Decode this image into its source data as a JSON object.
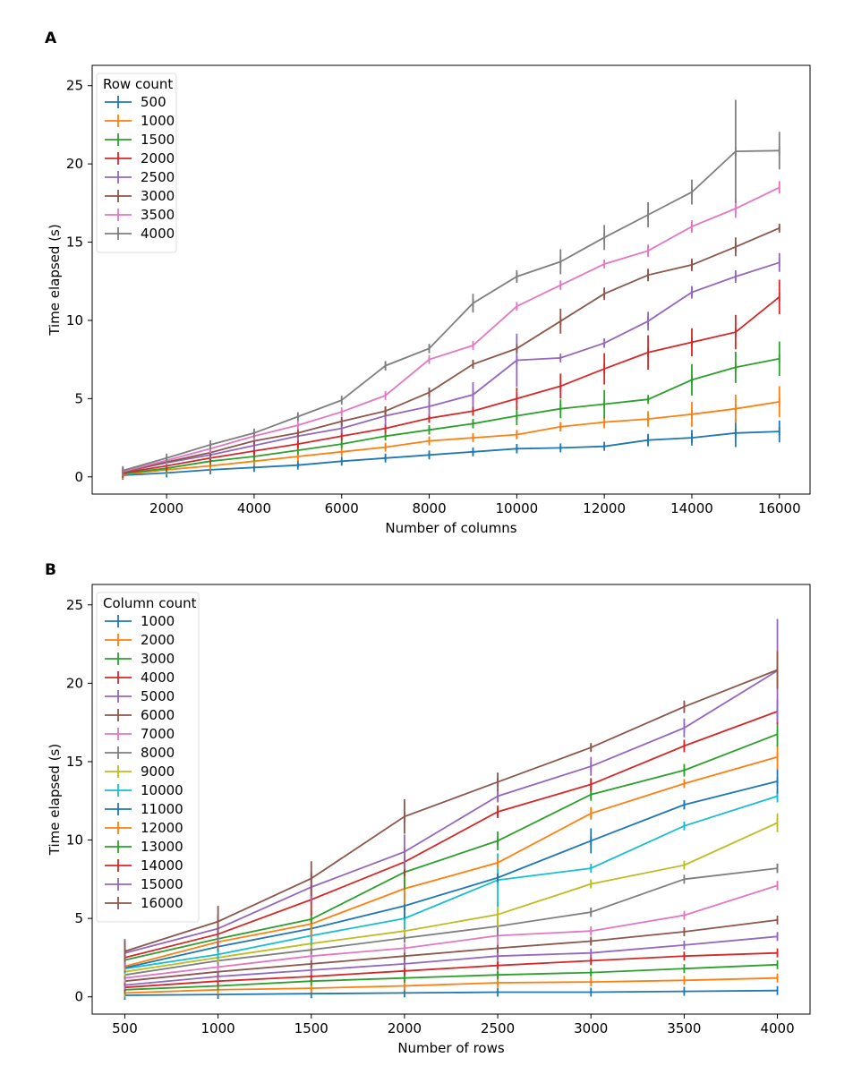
{
  "colors": [
    "#1f77b4",
    "#ff7f0e",
    "#2ca02c",
    "#d62728",
    "#9467bd",
    "#8c564b",
    "#e377c2",
    "#7f7f7f",
    "#bcbd22",
    "#17becf"
  ],
  "chart_data": [
    {
      "panel_label": "A",
      "type": "line",
      "error_bars": true,
      "xlabel": "Number of columns",
      "ylabel": "Time elapsed (s)",
      "xlim": [
        300,
        16700
      ],
      "ylim": [
        -1.1,
        26.3
      ],
      "xticks": [
        2000,
        4000,
        6000,
        8000,
        10000,
        12000,
        14000,
        16000
      ],
      "yticks": [
        0,
        5,
        10,
        15,
        20,
        25
      ],
      "legend_title": "Row count",
      "legend_placement": "top-left",
      "grid": false,
      "x": [
        1000,
        2000,
        3000,
        4000,
        5000,
        6000,
        7000,
        8000,
        9000,
        10000,
        11000,
        12000,
        13000,
        14000,
        15000,
        16000
      ],
      "series": [
        {
          "name": "500",
          "values": [
            0.1,
            0.25,
            0.45,
            0.6,
            0.75,
            1.0,
            1.2,
            1.4,
            1.6,
            1.8,
            1.85,
            1.95,
            2.35,
            2.5,
            2.8,
            2.9
          ],
          "errors": [
            0.05,
            0.05,
            0.05,
            0.05,
            0.1,
            0.1,
            0.2,
            0.2,
            0.2,
            0.3,
            0.1,
            0.1,
            0.4,
            0.5,
            0.9,
            0.7
          ]
        },
        {
          "name": "1000",
          "values": [
            0.15,
            0.45,
            0.7,
            1.0,
            1.3,
            1.6,
            1.9,
            2.3,
            2.5,
            2.7,
            3.2,
            3.5,
            3.7,
            4.0,
            4.35,
            4.8
          ],
          "errors": [
            0.05,
            0.1,
            0.1,
            0.1,
            0.1,
            0.1,
            0.2,
            0.2,
            0.2,
            0.3,
            0.3,
            0.4,
            0.5,
            0.8,
            0.9,
            1.0
          ]
        },
        {
          "name": "1500",
          "values": [
            0.2,
            0.55,
            1.0,
            1.3,
            1.7,
            2.1,
            2.6,
            3.0,
            3.4,
            3.9,
            4.35,
            4.65,
            4.95,
            6.2,
            7.0,
            7.55
          ],
          "errors": [
            0.05,
            0.1,
            0.1,
            0.1,
            0.1,
            0.2,
            0.2,
            0.3,
            0.3,
            0.6,
            0.6,
            0.9,
            0.1,
            1.0,
            1.0,
            1.1
          ]
        },
        {
          "name": "2000",
          "values": [
            0.25,
            0.7,
            1.2,
            1.65,
            2.1,
            2.6,
            3.1,
            3.75,
            4.2,
            5.0,
            5.8,
            6.9,
            7.95,
            8.6,
            9.25,
            11.5
          ],
          "errors": [
            0.05,
            0.1,
            0.2,
            0.2,
            0.2,
            0.2,
            0.3,
            0.3,
            0.3,
            0.7,
            0.8,
            1.0,
            1.1,
            0.9,
            1.1,
            1.1
          ]
        },
        {
          "name": "2500",
          "values": [
            0.3,
            0.9,
            1.4,
            2.0,
            2.6,
            3.1,
            3.9,
            4.5,
            5.25,
            7.45,
            7.6,
            8.55,
            9.95,
            11.8,
            12.8,
            13.7
          ],
          "errors": [
            0.05,
            0.1,
            0.2,
            0.2,
            0.3,
            0.3,
            0.6,
            0.6,
            0.8,
            1.7,
            0.1,
            0.3,
            0.6,
            0.4,
            0.4,
            0.6
          ]
        },
        {
          "name": "3000",
          "values": [
            0.3,
            0.95,
            1.55,
            2.3,
            2.8,
            3.55,
            4.2,
            5.4,
            7.2,
            8.2,
            9.95,
            11.7,
            12.9,
            13.55,
            14.7,
            15.9
          ],
          "errors": [
            0.05,
            0.1,
            0.2,
            0.2,
            0.2,
            0.2,
            0.3,
            0.3,
            0.2,
            0.1,
            0.8,
            0.4,
            0.4,
            0.4,
            0.6,
            0.2
          ]
        },
        {
          "name": "3500",
          "values": [
            0.35,
            1.05,
            1.8,
            2.6,
            3.3,
            4.15,
            5.2,
            7.5,
            8.4,
            10.9,
            12.25,
            13.6,
            14.45,
            16.0,
            17.15,
            18.5
          ],
          "errors": [
            0.05,
            0.1,
            0.1,
            0.1,
            0.1,
            0.1,
            0.2,
            0.1,
            0.1,
            0.2,
            0.3,
            0.2,
            0.4,
            0.4,
            0.6,
            0.4
          ]
        },
        {
          "name": "4000",
          "values": [
            0.4,
            1.2,
            2.05,
            2.8,
            3.85,
            4.9,
            7.1,
            8.2,
            11.1,
            12.8,
            13.75,
            15.3,
            16.75,
            18.2,
            20.8,
            20.85
          ],
          "errors": [
            0.05,
            0.1,
            0.1,
            0.1,
            0.2,
            0.1,
            0.3,
            0.3,
            0.6,
            0.4,
            0.8,
            0.8,
            0.8,
            0.8,
            3.3,
            1.2
          ]
        }
      ]
    },
    {
      "panel_label": "B",
      "type": "line",
      "error_bars": true,
      "xlabel": "Number of rows",
      "ylabel": "Time elapsed (s)",
      "xlim": [
        325,
        4175
      ],
      "ylim": [
        -1.1,
        26.3
      ],
      "xticks": [
        500,
        1000,
        1500,
        2000,
        2500,
        3000,
        3500,
        4000
      ],
      "yticks": [
        0,
        5,
        10,
        15,
        20,
        25
      ],
      "legend_title": "Column count",
      "legend_placement": "top-left",
      "grid": false,
      "x": [
        500,
        1000,
        1500,
        2000,
        2500,
        3000,
        3500,
        4000
      ],
      "series": [
        {
          "name": "1000",
          "values": [
            0.1,
            0.15,
            0.2,
            0.25,
            0.3,
            0.3,
            0.35,
            0.4
          ]
        },
        {
          "name": "2000",
          "values": [
            0.25,
            0.45,
            0.55,
            0.7,
            0.9,
            0.95,
            1.05,
            1.2
          ]
        },
        {
          "name": "3000",
          "values": [
            0.45,
            0.7,
            1.0,
            1.2,
            1.4,
            1.55,
            1.8,
            2.05
          ]
        },
        {
          "name": "4000",
          "values": [
            0.6,
            1.0,
            1.3,
            1.65,
            2.0,
            2.3,
            2.6,
            2.8
          ]
        },
        {
          "name": "5000",
          "values": [
            0.75,
            1.3,
            1.7,
            2.1,
            2.6,
            2.8,
            3.3,
            3.85
          ]
        },
        {
          "name": "6000",
          "values": [
            1.0,
            1.6,
            2.1,
            2.6,
            3.1,
            3.55,
            4.15,
            4.9
          ]
        },
        {
          "name": "7000",
          "values": [
            1.2,
            1.9,
            2.6,
            3.1,
            3.9,
            4.2,
            5.2,
            7.1
          ]
        },
        {
          "name": "8000",
          "values": [
            1.4,
            2.3,
            3.0,
            3.75,
            4.5,
            5.4,
            7.5,
            8.2
          ]
        },
        {
          "name": "9000",
          "values": [
            1.6,
            2.5,
            3.4,
            4.2,
            5.25,
            7.2,
            8.4,
            11.1
          ]
        },
        {
          "name": "10000",
          "values": [
            1.8,
            2.7,
            3.9,
            5.0,
            7.45,
            8.2,
            10.9,
            12.8
          ]
        },
        {
          "name": "11000",
          "values": [
            1.85,
            3.2,
            4.35,
            5.8,
            7.6,
            9.95,
            12.25,
            13.75
          ]
        },
        {
          "name": "12000",
          "values": [
            1.95,
            3.5,
            4.65,
            6.9,
            8.55,
            11.7,
            13.6,
            15.3
          ]
        },
        {
          "name": "13000",
          "values": [
            2.35,
            3.7,
            4.95,
            7.95,
            9.95,
            12.9,
            14.45,
            16.75
          ]
        },
        {
          "name": "14000",
          "values": [
            2.5,
            4.0,
            6.2,
            8.6,
            11.8,
            13.55,
            16.0,
            18.2
          ]
        },
        {
          "name": "15000",
          "values": [
            2.8,
            4.35,
            7.0,
            9.25,
            12.8,
            14.7,
            17.15,
            20.8
          ]
        },
        {
          "name": "16000",
          "values": [
            2.9,
            4.8,
            7.55,
            11.5,
            13.7,
            15.9,
            18.5,
            20.85
          ]
        }
      ]
    }
  ]
}
